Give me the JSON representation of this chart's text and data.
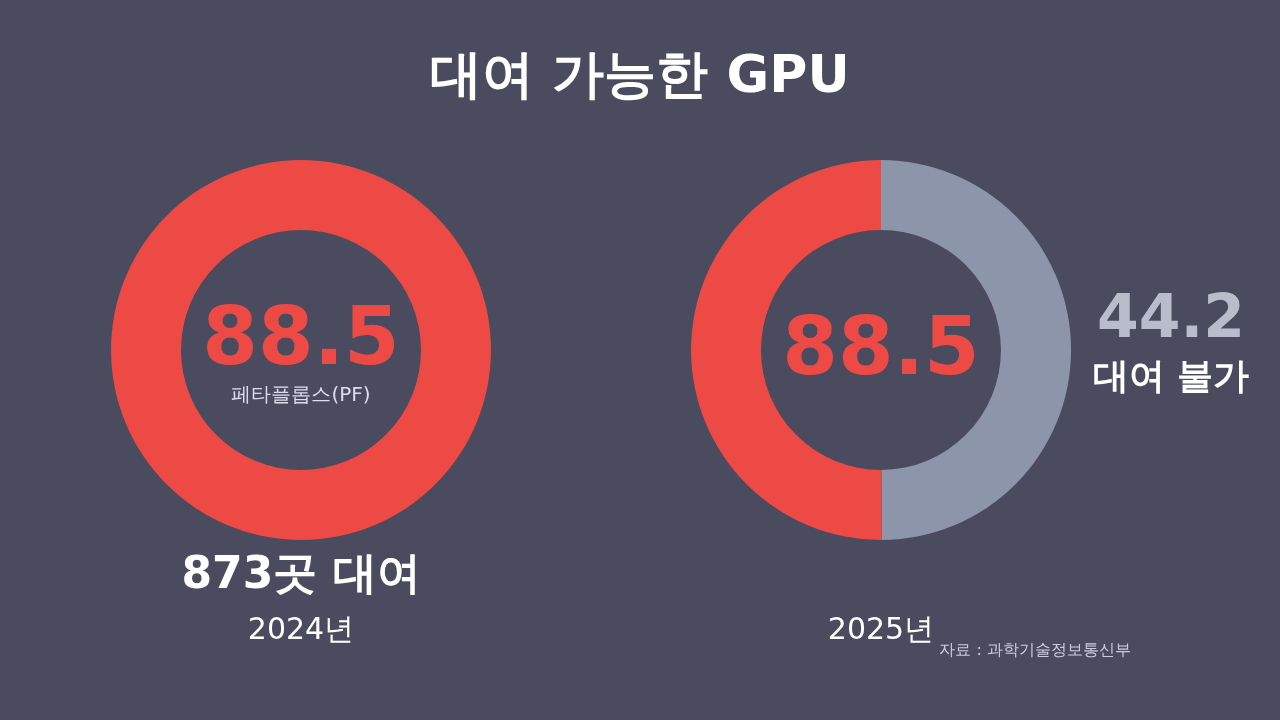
{
  "chart_data": [
    {
      "type": "donut",
      "title": "대여 가능한 GPU",
      "categories": [
        "873곳 대여"
      ],
      "values": [
        88.5
      ],
      "colors": [
        "#ee4a45"
      ],
      "data_labels": true,
      "xlabel": "2024년",
      "annotations": [
        "페타플롭스(PF)"
      ]
    },
    {
      "type": "donut",
      "categories": [
        "대여 불가",
        null
      ],
      "values": [
        44.2,
        44.3
      ],
      "colors": [
        "#8d95ab",
        "#ee4a45"
      ],
      "value_labels": [
        "44.2",
        null
      ],
      "xlabel": "2025년",
      "annotations": [
        "88.5",
        "자료 : 과학기술정보통신부"
      ]
    }
  ]
}
